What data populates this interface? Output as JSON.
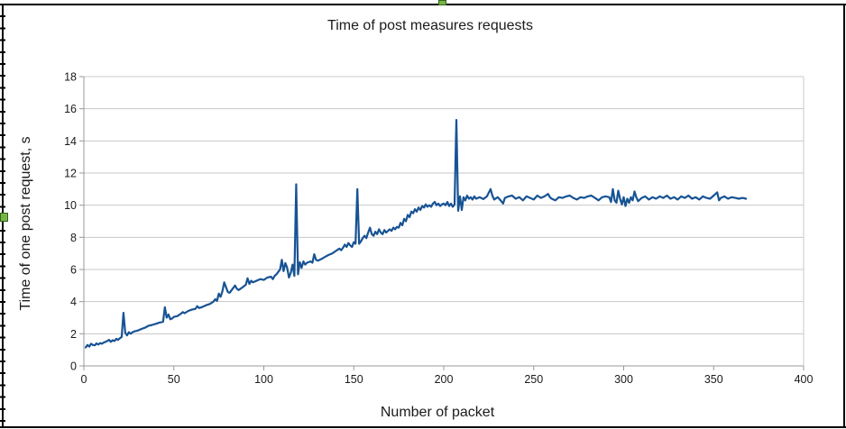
{
  "window": {
    "background": "#ffffff",
    "frame_border_color": "#000000",
    "selection_handle_fill": "#79b347",
    "selection_handle_border": "#2f6418"
  },
  "chart": {
    "colors": {
      "series_line": "#175394",
      "gridline": "#c8c8c8",
      "wall_border": "#c8c8c8",
      "axis_line": "#989898",
      "text": "#1b1b1b"
    }
  },
  "chart_data": {
    "type": "line",
    "title": "Time of post measures requests",
    "xlabel": "Number of packet",
    "ylabel": "Time of one post request, s",
    "xlim": [
      0,
      400
    ],
    "ylim": [
      0,
      18
    ],
    "x_ticks": [
      0,
      50,
      100,
      150,
      200,
      250,
      300,
      350,
      400
    ],
    "y_ticks": [
      0,
      2,
      4,
      6,
      8,
      10,
      12,
      14,
      16,
      18
    ],
    "grid": "horizontal",
    "legend": "none",
    "series": [
      {
        "points": [
          [
            1,
            1.15
          ],
          [
            2,
            1.3
          ],
          [
            3,
            1.2
          ],
          [
            4,
            1.38
          ],
          [
            5,
            1.3
          ],
          [
            6,
            1.28
          ],
          [
            7,
            1.4
          ],
          [
            8,
            1.33
          ],
          [
            9,
            1.42
          ],
          [
            10,
            1.38
          ],
          [
            11,
            1.45
          ],
          [
            12,
            1.5
          ],
          [
            13,
            1.55
          ],
          [
            14,
            1.62
          ],
          [
            15,
            1.5
          ],
          [
            16,
            1.6
          ],
          [
            17,
            1.55
          ],
          [
            18,
            1.68
          ],
          [
            19,
            1.62
          ],
          [
            20,
            1.72
          ],
          [
            21,
            1.8
          ],
          [
            22,
            3.3
          ],
          [
            23,
            2.05
          ],
          [
            24,
            1.9
          ],
          [
            25,
            2.1
          ],
          [
            26,
            2.0
          ],
          [
            27,
            2.1
          ],
          [
            28,
            2.15
          ],
          [
            30,
            2.2
          ],
          [
            32,
            2.3
          ],
          [
            34,
            2.38
          ],
          [
            36,
            2.5
          ],
          [
            38,
            2.55
          ],
          [
            40,
            2.62
          ],
          [
            42,
            2.7
          ],
          [
            44,
            2.75
          ],
          [
            45,
            3.65
          ],
          [
            46,
            3.0
          ],
          [
            47,
            3.2
          ],
          [
            48,
            2.9
          ],
          [
            49,
            2.95
          ],
          [
            50,
            3.05
          ],
          [
            52,
            3.1
          ],
          [
            54,
            3.25
          ],
          [
            55,
            3.35
          ],
          [
            56,
            3.28
          ],
          [
            58,
            3.42
          ],
          [
            60,
            3.5
          ],
          [
            62,
            3.55
          ],
          [
            63,
            3.72
          ],
          [
            64,
            3.6
          ],
          [
            66,
            3.68
          ],
          [
            68,
            3.78
          ],
          [
            70,
            3.85
          ],
          [
            72,
            4.0
          ],
          [
            73,
            4.15
          ],
          [
            74,
            4.05
          ],
          [
            75,
            4.5
          ],
          [
            76,
            4.3
          ],
          [
            77,
            4.65
          ],
          [
            78,
            5.2
          ],
          [
            79,
            4.9
          ],
          [
            80,
            4.6
          ],
          [
            81,
            4.55
          ],
          [
            82,
            4.7
          ],
          [
            84,
            5.0
          ],
          [
            85,
            4.8
          ],
          [
            86,
            4.72
          ],
          [
            88,
            4.88
          ],
          [
            90,
            5.05
          ],
          [
            91,
            5.45
          ],
          [
            92,
            5.1
          ],
          [
            93,
            5.3
          ],
          [
            94,
            5.2
          ],
          [
            96,
            5.3
          ],
          [
            98,
            5.4
          ],
          [
            100,
            5.35
          ],
          [
            102,
            5.5
          ],
          [
            104,
            5.55
          ],
          [
            105,
            5.4
          ],
          [
            106,
            5.6
          ],
          [
            107,
            5.7
          ],
          [
            108,
            5.85
          ],
          [
            109,
            6.0
          ],
          [
            110,
            6.6
          ],
          [
            111,
            5.9
          ],
          [
            112,
            6.4
          ],
          [
            113,
            6.1
          ],
          [
            114,
            5.5
          ],
          [
            115,
            5.8
          ],
          [
            116,
            6.3
          ],
          [
            117,
            5.6
          ],
          [
            118,
            11.3
          ],
          [
            119,
            5.7
          ],
          [
            120,
            6.45
          ],
          [
            121,
            6.1
          ],
          [
            122,
            6.5
          ],
          [
            123,
            6.3
          ],
          [
            124,
            6.42
          ],
          [
            126,
            6.5
          ],
          [
            127,
            6.42
          ],
          [
            128,
            6.95
          ],
          [
            129,
            6.6
          ],
          [
            130,
            6.55
          ],
          [
            132,
            6.65
          ],
          [
            134,
            6.78
          ],
          [
            136,
            6.9
          ],
          [
            138,
            7.0
          ],
          [
            140,
            7.15
          ],
          [
            142,
            7.3
          ],
          [
            143,
            7.2
          ],
          [
            144,
            7.35
          ],
          [
            145,
            7.55
          ],
          [
            146,
            7.4
          ],
          [
            147,
            7.65
          ],
          [
            148,
            7.5
          ],
          [
            149,
            7.4
          ],
          [
            150,
            7.7
          ],
          [
            151,
            7.6
          ],
          [
            152,
            11.0
          ],
          [
            153,
            7.6
          ],
          [
            154,
            7.75
          ],
          [
            155,
            7.95
          ],
          [
            156,
            8.1
          ],
          [
            157,
            7.95
          ],
          [
            158,
            8.3
          ],
          [
            159,
            8.6
          ],
          [
            160,
            8.2
          ],
          [
            161,
            8.1
          ],
          [
            162,
            8.35
          ],
          [
            163,
            8.2
          ],
          [
            164,
            8.5
          ],
          [
            165,
            8.3
          ],
          [
            166,
            8.2
          ],
          [
            167,
            8.45
          ],
          [
            168,
            8.3
          ],
          [
            170,
            8.5
          ],
          [
            171,
            8.4
          ],
          [
            172,
            8.6
          ],
          [
            173,
            8.5
          ],
          [
            174,
            8.65
          ],
          [
            175,
            8.6
          ],
          [
            176,
            8.9
          ],
          [
            177,
            8.75
          ],
          [
            178,
            9.15
          ],
          [
            179,
            9.0
          ],
          [
            180,
            9.4
          ],
          [
            181,
            9.25
          ],
          [
            182,
            9.6
          ],
          [
            183,
            9.5
          ],
          [
            184,
            9.75
          ],
          [
            185,
            9.6
          ],
          [
            186,
            9.85
          ],
          [
            187,
            9.7
          ],
          [
            188,
            9.95
          ],
          [
            189,
            9.85
          ],
          [
            190,
            10.05
          ],
          [
            191,
            9.9
          ],
          [
            192,
            10.0
          ],
          [
            193,
            9.9
          ],
          [
            194,
            10.1
          ],
          [
            195,
            10.2
          ],
          [
            196,
            10.0
          ],
          [
            197,
            10.1
          ],
          [
            198,
            9.95
          ],
          [
            199,
            10.05
          ],
          [
            200,
            10.1
          ],
          [
            201,
            10.0
          ],
          [
            202,
            10.2
          ],
          [
            203,
            9.95
          ],
          [
            204,
            10.1
          ],
          [
            205,
            9.9
          ],
          [
            206,
            10.05
          ],
          [
            207,
            15.3
          ],
          [
            208,
            9.65
          ],
          [
            209,
            10.55
          ],
          [
            210,
            9.7
          ],
          [
            211,
            10.5
          ],
          [
            212,
            10.3
          ],
          [
            213,
            10.6
          ],
          [
            214,
            10.4
          ],
          [
            215,
            10.5
          ],
          [
            216,
            10.35
          ],
          [
            217,
            10.55
          ],
          [
            218,
            10.4
          ],
          [
            220,
            10.5
          ],
          [
            222,
            10.38
          ],
          [
            224,
            10.55
          ],
          [
            226,
            11.0
          ],
          [
            227,
            10.6
          ],
          [
            228,
            10.35
          ],
          [
            230,
            10.5
          ],
          [
            232,
            10.25
          ],
          [
            233,
            10.1
          ],
          [
            234,
            10.45
          ],
          [
            236,
            10.55
          ],
          [
            238,
            10.6
          ],
          [
            240,
            10.4
          ],
          [
            242,
            10.5
          ],
          [
            244,
            10.3
          ],
          [
            246,
            10.55
          ],
          [
            248,
            10.45
          ],
          [
            250,
            10.35
          ],
          [
            252,
            10.6
          ],
          [
            254,
            10.45
          ],
          [
            256,
            10.55
          ],
          [
            258,
            10.7
          ],
          [
            259,
            10.5
          ],
          [
            260,
            10.4
          ],
          [
            262,
            10.3
          ],
          [
            264,
            10.5
          ],
          [
            266,
            10.45
          ],
          [
            268,
            10.55
          ],
          [
            270,
            10.6
          ],
          [
            272,
            10.45
          ],
          [
            274,
            10.35
          ],
          [
            276,
            10.5
          ],
          [
            278,
            10.45
          ],
          [
            280,
            10.55
          ],
          [
            282,
            10.6
          ],
          [
            284,
            10.45
          ],
          [
            286,
            10.3
          ],
          [
            288,
            10.5
          ],
          [
            290,
            10.55
          ],
          [
            292,
            10.5
          ],
          [
            293,
            10.2
          ],
          [
            294,
            11.0
          ],
          [
            295,
            10.3
          ],
          [
            296,
            10.15
          ],
          [
            297,
            10.9
          ],
          [
            298,
            10.4
          ],
          [
            299,
            10.05
          ],
          [
            300,
            10.5
          ],
          [
            301,
            9.95
          ],
          [
            302,
            10.4
          ],
          [
            303,
            10.15
          ],
          [
            304,
            10.5
          ],
          [
            305,
            10.3
          ],
          [
            306,
            10.85
          ],
          [
            307,
            10.5
          ],
          [
            308,
            10.25
          ],
          [
            310,
            10.45
          ],
          [
            312,
            10.55
          ],
          [
            314,
            10.35
          ],
          [
            316,
            10.5
          ],
          [
            318,
            10.4
          ],
          [
            320,
            10.55
          ],
          [
            322,
            10.45
          ],
          [
            324,
            10.6
          ],
          [
            326,
            10.4
          ],
          [
            328,
            10.5
          ],
          [
            330,
            10.35
          ],
          [
            332,
            10.55
          ],
          [
            334,
            10.45
          ],
          [
            336,
            10.6
          ],
          [
            338,
            10.4
          ],
          [
            340,
            10.5
          ],
          [
            342,
            10.35
          ],
          [
            344,
            10.55
          ],
          [
            346,
            10.45
          ],
          [
            348,
            10.4
          ],
          [
            350,
            10.6
          ],
          [
            352,
            10.8
          ],
          [
            353,
            10.3
          ],
          [
            354,
            10.45
          ],
          [
            356,
            10.55
          ],
          [
            358,
            10.4
          ],
          [
            360,
            10.5
          ],
          [
            362,
            10.45
          ],
          [
            364,
            10.4
          ],
          [
            366,
            10.45
          ],
          [
            368,
            10.4
          ]
        ]
      }
    ]
  }
}
